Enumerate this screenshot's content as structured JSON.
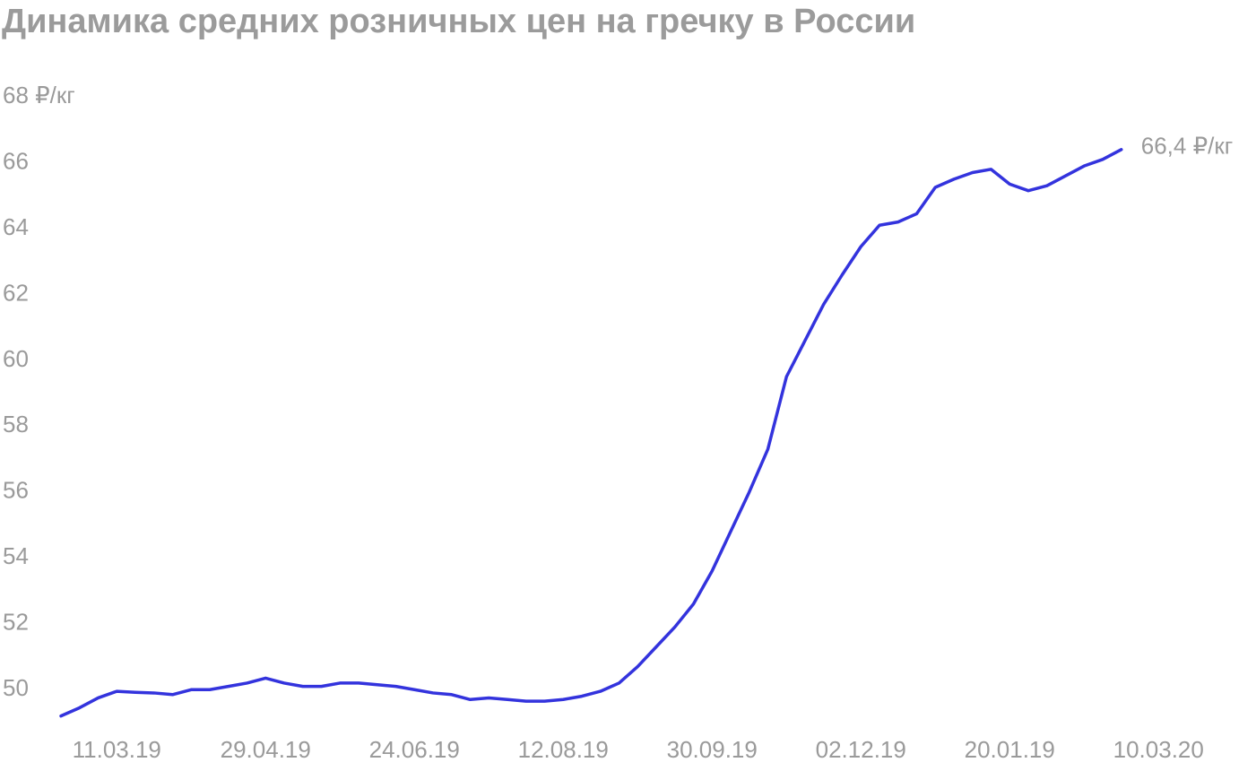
{
  "chart_data": {
    "type": "line",
    "title": "Динамика средних розничных цен на гречку в России",
    "categories": [
      null,
      null,
      null,
      "11.03.19",
      null,
      null,
      null,
      null,
      null,
      null,
      null,
      "29.04.19",
      null,
      null,
      null,
      null,
      null,
      null,
      null,
      "24.06.19",
      null,
      null,
      null,
      null,
      null,
      null,
      null,
      "12.08.19",
      null,
      null,
      null,
      null,
      null,
      null,
      null,
      "30.09.19",
      null,
      null,
      null,
      null,
      null,
      null,
      null,
      "02.12.19",
      null,
      null,
      null,
      null,
      null,
      null,
      null,
      "20.01.19",
      null,
      null,
      null,
      null,
      null,
      null,
      null,
      "10.03.20",
      null
    ],
    "series": [
      {
        "color": "#3333dd",
        "values": [
          49.2,
          49.45,
          49.75,
          49.95,
          49.92,
          49.9,
          49.85,
          50.0,
          50.0,
          50.1,
          50.2,
          50.35,
          50.2,
          50.1,
          50.1,
          50.2,
          50.2,
          50.15,
          50.1,
          50.0,
          49.9,
          49.85,
          49.7,
          49.75,
          49.7,
          49.65,
          49.65,
          49.7,
          49.8,
          49.95,
          50.2,
          50.7,
          51.3,
          51.9,
          52.6,
          53.6,
          54.8,
          56.0,
          57.3,
          59.5,
          60.6,
          61.7,
          62.6,
          63.45,
          64.1,
          64.2,
          64.45,
          65.25,
          65.5,
          65.7,
          65.8,
          65.35,
          65.15,
          65.3,
          65.6,
          65.9,
          66.1,
          66.4,
          null,
          null,
          null
        ],
        "value_labels": [
          null,
          null,
          null,
          null,
          null,
          null,
          null,
          null,
          null,
          null,
          null,
          null,
          null,
          null,
          null,
          null,
          null,
          null,
          null,
          null,
          null,
          null,
          null,
          null,
          null,
          null,
          null,
          null,
          null,
          null,
          null,
          null,
          null,
          null,
          null,
          null,
          null,
          null,
          null,
          null,
          null,
          null,
          null,
          null,
          null,
          null,
          null,
          null,
          null,
          null,
          null,
          null,
          null,
          null,
          null,
          null,
          null,
          "66,4 ₽/кг",
          null,
          null,
          null
        ]
      }
    ],
    "ylim": [
      49,
      68
    ],
    "yticks": [
      50,
      52,
      54,
      56,
      58,
      60,
      62,
      64,
      66,
      {
        "value": 68,
        "label": "68 ₽/кг"
      }
    ],
    "grid": false
  }
}
